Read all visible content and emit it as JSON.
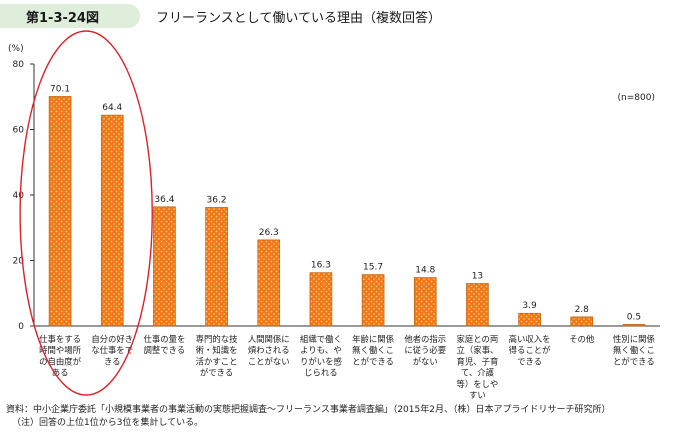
{
  "figure": {
    "number": "第1-3-24図",
    "title": "フリーランスとして働いている理由（複数回答）"
  },
  "chart_data": {
    "type": "bar",
    "y_unit": "(%)",
    "sample_note": "(n=800)",
    "ylim": [
      0,
      80
    ],
    "yticks": [
      0,
      20,
      40,
      60,
      80
    ],
    "grid": false,
    "categories": [
      [
        "仕事をする",
        "時間や場所",
        "の自由度が",
        "ある"
      ],
      [
        "自分の好き",
        "な仕事をで",
        "きる"
      ],
      [
        "仕事の量を",
        "調整できる"
      ],
      [
        "専門的な技",
        "術・知識を",
        "活かすこと",
        "ができる"
      ],
      [
        "人間関係に",
        "煩わされる",
        "ことがない"
      ],
      [
        "組織で働く",
        "よりも、や",
        "りがいを感",
        "じられる"
      ],
      [
        "年齢に関係",
        "無く働くこ",
        "とができる"
      ],
      [
        "他者の指示",
        "に従う必要",
        "がない"
      ],
      [
        "家庭との両",
        "立（家事、",
        "育児、子育",
        "て、介護",
        "等）をしや",
        "すい"
      ],
      [
        "高い収入を",
        "得ることが",
        "できる"
      ],
      [
        "その他"
      ],
      [
        "性別に関係",
        "無く働くこ",
        "とができる"
      ]
    ],
    "values": [
      70.1,
      64.4,
      36.4,
      36.2,
      26.3,
      16.3,
      15.7,
      14.8,
      13,
      3.9,
      2.8,
      0.5
    ],
    "value_labels": [
      "70.1",
      "64.4",
      "36.4",
      "36.2",
      "26.3",
      "16.3",
      "15.7",
      "14.8",
      "13",
      "3.9",
      "2.8",
      "0.5"
    ],
    "highlight": "top-2 categories circled in red",
    "colors": {
      "bar_fill": "#f07818",
      "bar_dots": "#ffd28a",
      "bar_edge": "#b85a00",
      "highlight": "#d9232a",
      "badge": "#dfeeda"
    }
  },
  "source": "資料：中小企業庁委託「小規模事業者の事業活動の実態把握調査～フリーランス事業者調査編」（2015年2月、（株）日本アプライドリサーチ研究所）",
  "note": "（注）回答の上位1位から3位を集計している。"
}
